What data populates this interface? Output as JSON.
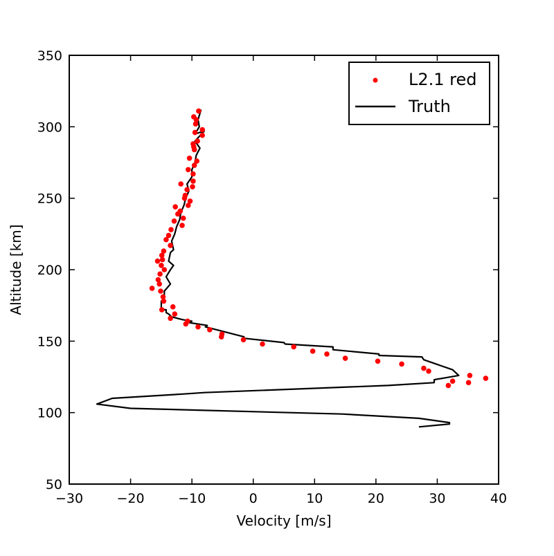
{
  "chart_data": {
    "type": "scatter",
    "title": "",
    "xlabel": "Velocity [m/s]",
    "ylabel": "Altitude [km]",
    "xlim": [
      -30,
      40
    ],
    "ylim": [
      50,
      350
    ],
    "xticks": [
      -30,
      -20,
      -10,
      0,
      10,
      20,
      30,
      40
    ],
    "yticks": [
      50,
      100,
      150,
      200,
      250,
      300,
      350
    ],
    "xtick_labels": [
      "−30",
      "−20",
      "−10",
      "0",
      "10",
      "20",
      "30",
      "40"
    ],
    "ytick_labels": [
      "50",
      "100",
      "150",
      "200",
      "250",
      "300",
      "350"
    ],
    "grid": false,
    "legend_position": "top-right",
    "series": [
      {
        "name": "L2.1 red",
        "kind": "points",
        "color": "#ff0000",
        "x": [
          -8.9,
          -9.7,
          -9.3,
          -9.4,
          -8.3,
          -9.5,
          -8.3,
          -9.1,
          -9.8,
          -9.7,
          -9.6,
          -10.4,
          -9.2,
          -9.6,
          -10.6,
          -9.8,
          -9.8,
          -11.8,
          -9.9,
          -10.8,
          -11.1,
          -11.2,
          -10.3,
          -10.6,
          -12.7,
          -11.9,
          -12.3,
          -11.4,
          -12.9,
          -11.6,
          -13.4,
          -13.8,
          -14.2,
          -13.5,
          -14.6,
          -14.9,
          -14.8,
          -15.6,
          -15.0,
          -14.5,
          -15.2,
          -15.5,
          -15.3,
          -16.5,
          -15.1,
          -14.7,
          -14.6,
          -13.1,
          -14.9,
          -12.8,
          -13.5,
          -10.7,
          -11.0,
          -9.0,
          -7.1,
          -5.1,
          -5.2,
          -1.6,
          1.5,
          6.6,
          9.7,
          12.0,
          15.0,
          20.3,
          24.2,
          27.8,
          28.6,
          35.3,
          37.9,
          32.5,
          35.1,
          31.8
        ],
        "y": [
          311,
          307,
          305,
          302,
          298,
          296,
          294,
          290,
          288,
          286,
          284,
          278,
          276,
          273,
          270,
          267,
          262,
          260,
          258,
          256,
          252,
          250,
          248,
          245,
          244,
          241,
          239,
          236,
          234,
          231,
          228,
          224,
          221,
          217,
          213,
          210,
          207,
          206,
          203,
          200,
          197,
          193,
          190,
          187,
          185,
          181,
          178,
          174,
          172,
          169,
          166,
          164,
          162,
          160,
          158,
          155,
          153,
          151,
          148,
          146,
          143,
          141,
          138,
          136,
          134,
          131,
          129,
          126,
          124,
          122,
          121,
          119
        ],
        "note_unused": ""
      },
      {
        "name": "Truth",
        "kind": "line",
        "color": "#000000",
        "x": [
          -8.5,
          -9.0,
          -8.8,
          -9.5,
          -8.0,
          -9.5,
          -8.7,
          -9.3,
          -9.5,
          -10.0,
          -10.0,
          -10.8,
          -10.5,
          -11.0,
          -11.3,
          -11.8,
          -12.0,
          -12.5,
          -12.8,
          -13.3,
          -13.0,
          -13.5,
          -13.8,
          -13.0,
          -13.5,
          -14.2,
          -13.5,
          -14.5,
          -14.5,
          -15.0,
          -15.0,
          -14.2,
          -14.2,
          -13.8,
          -13.3,
          -11.5,
          -10.0,
          -10.5,
          -7.5,
          -7.8,
          -1.5,
          -1.5,
          5.0,
          5.2,
          13.0,
          13.0,
          20.5,
          20.5,
          27.5,
          27.8,
          32.5,
          33.5,
          29.5,
          29.5,
          22.0,
          -8.0,
          -11.5,
          -23.0,
          -25.5,
          -20.0,
          14.5,
          27.0,
          32.0,
          32.0,
          27.0
        ],
        "y": [
          312,
          305,
          300,
          295,
          297,
          290,
          285,
          280,
          275,
          270,
          265,
          260,
          255,
          250,
          245,
          240,
          235,
          230,
          225,
          220,
          214,
          212,
          206,
          203,
          200,
          195,
          190,
          185,
          180,
          178,
          172,
          172,
          170,
          169,
          167,
          165,
          164,
          163,
          161,
          160,
          153,
          152,
          149,
          148,
          146,
          144,
          141,
          140,
          139,
          137,
          130,
          126,
          123,
          121,
          119,
          114,
          113,
          110,
          106,
          103,
          99,
          96,
          93,
          92,
          90
        ]
      }
    ]
  }
}
